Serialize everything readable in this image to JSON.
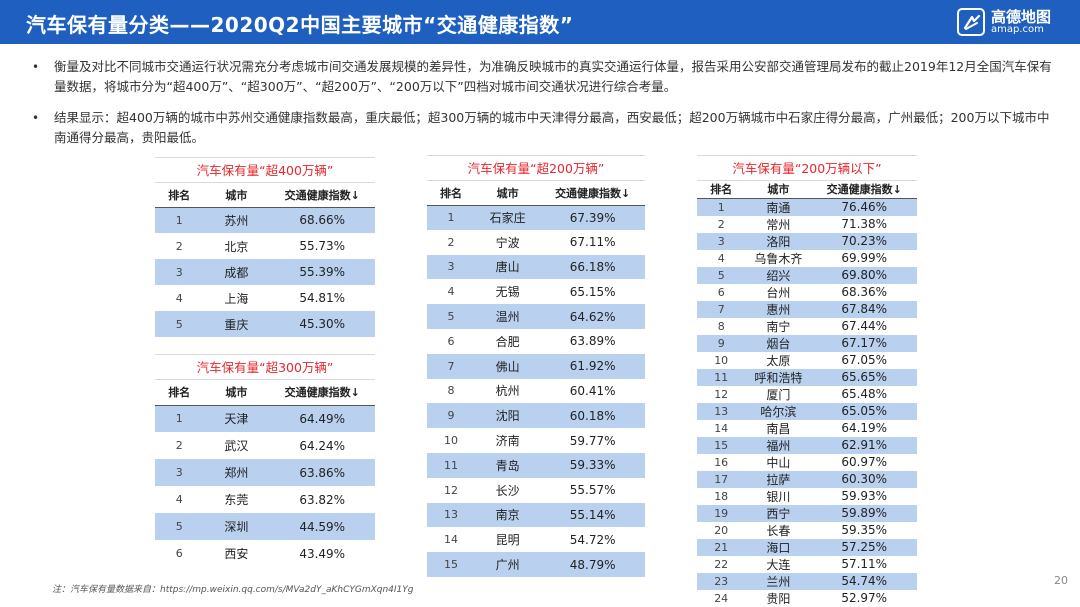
{
  "header": {
    "title": "汽车保有量分类——2020Q2中国主要城市“交通健康指数”",
    "logo_name": "高德地图",
    "logo_sub": "amap.com",
    "bg_color": "#1f5fbf"
  },
  "bullets": [
    "衡量及对比不同城市交通运行状况需充分考虑城市间交通发展规模的差异性，为准确反映城市的真实交通运行体量，报告采用公安部交通管理局发布的截止2019年12月全国汽车保有量数据，将城市分为“超400万”、“超300万”、“超200万”、“200万以下”四档对城市间交通状况进行综合考量。",
    "结果显示：超400万辆的城市中苏州交通健康指数最高，重庆最低；超300万辆的城市中天津得分最高，西安最低；超200万辆城市中石家庄得分最高，广州最低；200万以下城市中南通得分最高，贵阳最低。"
  ],
  "columns": {
    "rank": "排名",
    "city": "城市",
    "score": "交通健康指数↓"
  },
  "tables": {
    "t400": {
      "title": "汽车保有量“超400万辆”",
      "rows": [
        {
          "rank": "1",
          "city": "苏州",
          "score": "68.66%"
        },
        {
          "rank": "2",
          "city": "北京",
          "score": "55.73%"
        },
        {
          "rank": "3",
          "city": "成都",
          "score": "55.39%"
        },
        {
          "rank": "4",
          "city": "上海",
          "score": "54.81%"
        },
        {
          "rank": "5",
          "city": "重庆",
          "score": "45.30%"
        }
      ]
    },
    "t300": {
      "title": "汽车保有量“超300万辆”",
      "rows": [
        {
          "rank": "1",
          "city": "天津",
          "score": "64.49%"
        },
        {
          "rank": "2",
          "city": "武汉",
          "score": "64.24%"
        },
        {
          "rank": "3",
          "city": "郑州",
          "score": "63.86%"
        },
        {
          "rank": "4",
          "city": "东莞",
          "score": "63.82%"
        },
        {
          "rank": "5",
          "city": "深圳",
          "score": "44.59%"
        },
        {
          "rank": "6",
          "city": "西安",
          "score": "43.49%"
        }
      ]
    },
    "t200": {
      "title": "汽车保有量“超200万辆”",
      "rows": [
        {
          "rank": "1",
          "city": "石家庄",
          "score": "67.39%"
        },
        {
          "rank": "2",
          "city": "宁波",
          "score": "67.11%"
        },
        {
          "rank": "3",
          "city": "唐山",
          "score": "66.18%"
        },
        {
          "rank": "4",
          "city": "无锡",
          "score": "65.15%"
        },
        {
          "rank": "5",
          "city": "温州",
          "score": "64.62%"
        },
        {
          "rank": "6",
          "city": "合肥",
          "score": "63.89%"
        },
        {
          "rank": "7",
          "city": "佛山",
          "score": "61.92%"
        },
        {
          "rank": "8",
          "city": "杭州",
          "score": "60.41%"
        },
        {
          "rank": "9",
          "city": "沈阳",
          "score": "60.18%"
        },
        {
          "rank": "10",
          "city": "济南",
          "score": "59.77%"
        },
        {
          "rank": "11",
          "city": "青岛",
          "score": "59.33%"
        },
        {
          "rank": "12",
          "city": "长沙",
          "score": "55.57%"
        },
        {
          "rank": "13",
          "city": "南京",
          "score": "55.14%"
        },
        {
          "rank": "14",
          "city": "昆明",
          "score": "54.72%"
        },
        {
          "rank": "15",
          "city": "广州",
          "score": "48.79%"
        }
      ]
    },
    "tunder200": {
      "title": "汽车保有量“200万辆以下”",
      "rows": [
        {
          "rank": "1",
          "city": "南通",
          "score": "76.46%"
        },
        {
          "rank": "2",
          "city": "常州",
          "score": "71.38%"
        },
        {
          "rank": "3",
          "city": "洛阳",
          "score": "70.23%"
        },
        {
          "rank": "4",
          "city": "乌鲁木齐",
          "score": "69.99%"
        },
        {
          "rank": "5",
          "city": "绍兴",
          "score": "69.80%"
        },
        {
          "rank": "6",
          "city": "台州",
          "score": "68.36%"
        },
        {
          "rank": "7",
          "city": "惠州",
          "score": "67.84%"
        },
        {
          "rank": "8",
          "city": "南宁",
          "score": "67.44%"
        },
        {
          "rank": "9",
          "city": "烟台",
          "score": "67.17%"
        },
        {
          "rank": "10",
          "city": "太原",
          "score": "67.05%"
        },
        {
          "rank": "11",
          "city": "呼和浩特",
          "score": "65.65%"
        },
        {
          "rank": "12",
          "city": "厦门",
          "score": "65.48%"
        },
        {
          "rank": "13",
          "city": "哈尔滨",
          "score": "65.05%"
        },
        {
          "rank": "14",
          "city": "南昌",
          "score": "64.19%"
        },
        {
          "rank": "15",
          "city": "福州",
          "score": "62.91%"
        },
        {
          "rank": "16",
          "city": "中山",
          "score": "60.97%"
        },
        {
          "rank": "17",
          "city": "拉萨",
          "score": "60.30%"
        },
        {
          "rank": "18",
          "city": "银川",
          "score": "59.93%"
        },
        {
          "rank": "19",
          "city": "西宁",
          "score": "59.89%"
        },
        {
          "rank": "20",
          "city": "长春",
          "score": "59.35%"
        },
        {
          "rank": "21",
          "city": "海口",
          "score": "57.25%"
        },
        {
          "rank": "22",
          "city": "大连",
          "score": "57.11%"
        },
        {
          "rank": "23",
          "city": "兰州",
          "score": "54.74%"
        },
        {
          "rank": "24",
          "city": "贵阳",
          "score": "52.97%"
        }
      ]
    }
  },
  "footnote": "注：汽车保有量数据来自：https://mp.weixin.qq.com/s/MVa2dY_aKhCYGmXqn4I1Yg",
  "page_number": "20",
  "colors": {
    "shade": "#b9d1ef",
    "title_red": "#e8262c"
  }
}
